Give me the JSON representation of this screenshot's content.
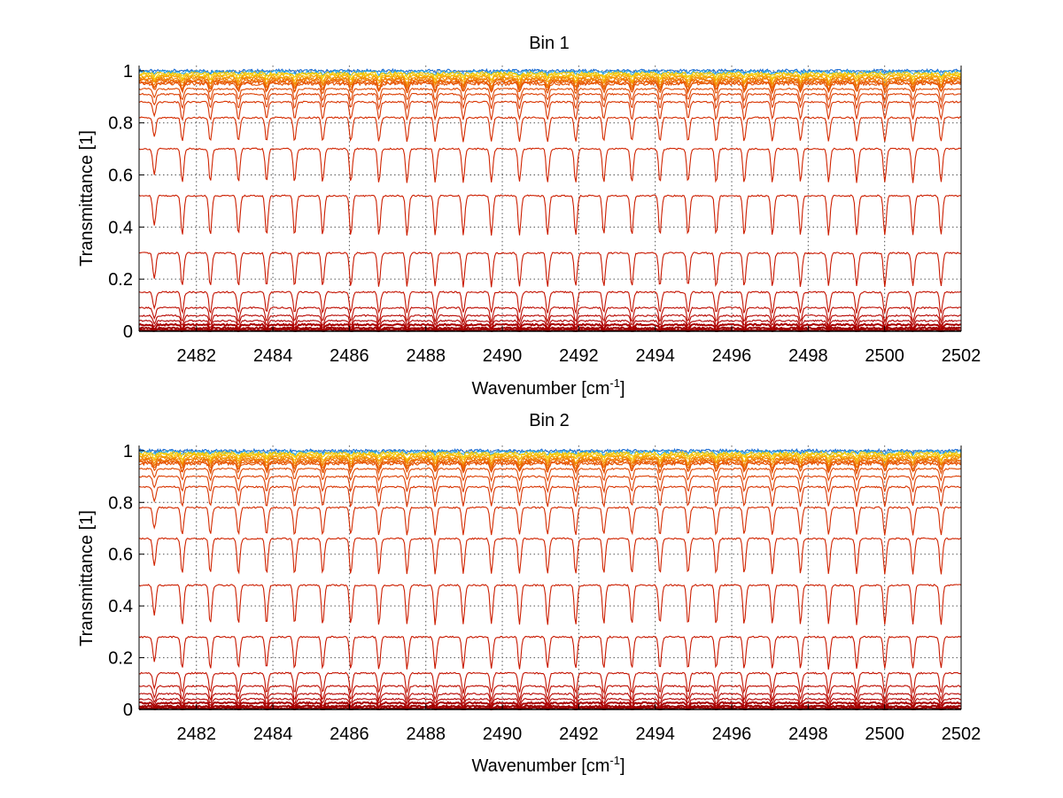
{
  "chart_data": [
    {
      "type": "line",
      "title": "Bin 1",
      "xlabel": "Wavenumber [cm",
      "xlabel_sup": "-1",
      "xlabel_tail": "]",
      "ylabel": "Transmittance [1]",
      "xlim": [
        2480.5,
        2502
      ],
      "ylim": [
        0,
        1.02
      ],
      "xticks": [
        2482,
        2484,
        2486,
        2488,
        2490,
        2492,
        2494,
        2496,
        2498,
        2500,
        2502
      ],
      "yticks": [
        0,
        0.2,
        0.4,
        0.6,
        0.8,
        1
      ],
      "ytick_labels": [
        "0",
        "0.2",
        "0.4",
        "0.6",
        "0.8",
        "1"
      ],
      "grid": true,
      "absorption_line_spacing_cm-1": 0.735,
      "series_baselines": [
        1.0,
        0.995,
        0.99,
        0.985,
        0.98,
        0.975,
        0.97,
        0.965,
        0.96,
        0.955,
        0.95,
        0.93,
        0.91,
        0.88,
        0.82,
        0.7,
        0.52,
        0.3,
        0.15,
        0.09,
        0.06,
        0.04,
        0.025,
        0.012,
        0.005
      ],
      "series_colors": [
        "#1f6fd6",
        "#2aa9e0",
        "#f2c200",
        "#f5d000",
        "#f7b500",
        "#f5a000",
        "#f28c00",
        "#ef7a00",
        "#ec6a00",
        "#e85c00",
        "#e55000",
        "#e04800",
        "#dc3e00",
        "#d83400",
        "#d42c00",
        "#d02400",
        "#cc1e00",
        "#c81800",
        "#c31200",
        "#bd0c00",
        "#b70600",
        "#b00000",
        "#a80000",
        "#a00000",
        "#980000"
      ]
    },
    {
      "type": "line",
      "title": "Bin 2",
      "xlabel": "Wavenumber [cm",
      "xlabel_sup": "-1",
      "xlabel_tail": "]",
      "ylabel": "Transmittance [1]",
      "xlim": [
        2480.5,
        2502
      ],
      "ylim": [
        0,
        1.02
      ],
      "xticks": [
        2482,
        2484,
        2486,
        2488,
        2490,
        2492,
        2494,
        2496,
        2498,
        2500,
        2502
      ],
      "yticks": [
        0,
        0.2,
        0.4,
        0.6,
        0.8,
        1
      ],
      "ytick_labels": [
        "0",
        "0.2",
        "0.4",
        "0.6",
        "0.8",
        "1"
      ],
      "grid": true,
      "absorption_line_spacing_cm-1": 0.735,
      "series_baselines": [
        1.0,
        0.995,
        0.99,
        0.985,
        0.98,
        0.975,
        0.97,
        0.965,
        0.96,
        0.955,
        0.95,
        0.93,
        0.9,
        0.86,
        0.78,
        0.66,
        0.48,
        0.28,
        0.14,
        0.09,
        0.06,
        0.04,
        0.025,
        0.012,
        0.005
      ],
      "series_colors": [
        "#1f6fd6",
        "#2aa9e0",
        "#f2c200",
        "#f5d000",
        "#f7b500",
        "#f5a000",
        "#f28c00",
        "#ef7a00",
        "#ec6a00",
        "#e85c00",
        "#e55000",
        "#e04800",
        "#dc3e00",
        "#d83400",
        "#d42c00",
        "#d02400",
        "#cc1e00",
        "#c81800",
        "#c31200",
        "#bd0c00",
        "#b70600",
        "#b00000",
        "#a80000",
        "#a00000",
        "#980000"
      ]
    }
  ]
}
